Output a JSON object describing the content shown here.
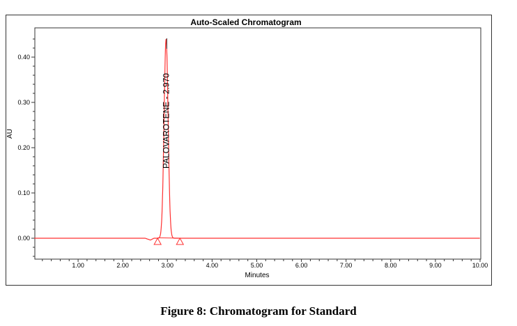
{
  "caption": "Figure 8: Chromatogram for Standard",
  "chart_data": {
    "type": "line",
    "title": "Auto-Scaled Chromatogram",
    "xlabel": "Minutes",
    "ylabel": "AU",
    "xlim": [
      0.02,
      10.0
    ],
    "ylim": [
      -0.046,
      0.465
    ],
    "x_ticks": [
      1.0,
      2.0,
      3.0,
      4.0,
      5.0,
      6.0,
      7.0,
      8.0,
      9.0,
      10.0
    ],
    "x_tick_labels": [
      "1.00",
      "2.00",
      "3.00",
      "4.00",
      "5.00",
      "6.00",
      "7.00",
      "8.00",
      "9.00",
      "10.00"
    ],
    "y_ticks": [
      0.0,
      0.1,
      0.2,
      0.3,
      0.4
    ],
    "y_tick_labels": [
      "0.00",
      "0.10",
      "0.20",
      "0.30",
      "0.40"
    ],
    "grid": false,
    "line_color": "#ff3030",
    "series": [
      {
        "name": "Standard",
        "peak": {
          "label": "PALOVAROTENE - 2.970",
          "retention_time": 2.97,
          "height": 0.44,
          "sigma": 0.045
        },
        "baseline_points": [
          [
            0.02,
            0.0
          ],
          [
            2.5,
            0.0
          ],
          [
            2.62,
            -0.004
          ],
          [
            2.7,
            0.0
          ],
          [
            10.0,
            0.0
          ]
        ],
        "integration_markers": [
          2.78,
          3.28
        ]
      }
    ]
  }
}
